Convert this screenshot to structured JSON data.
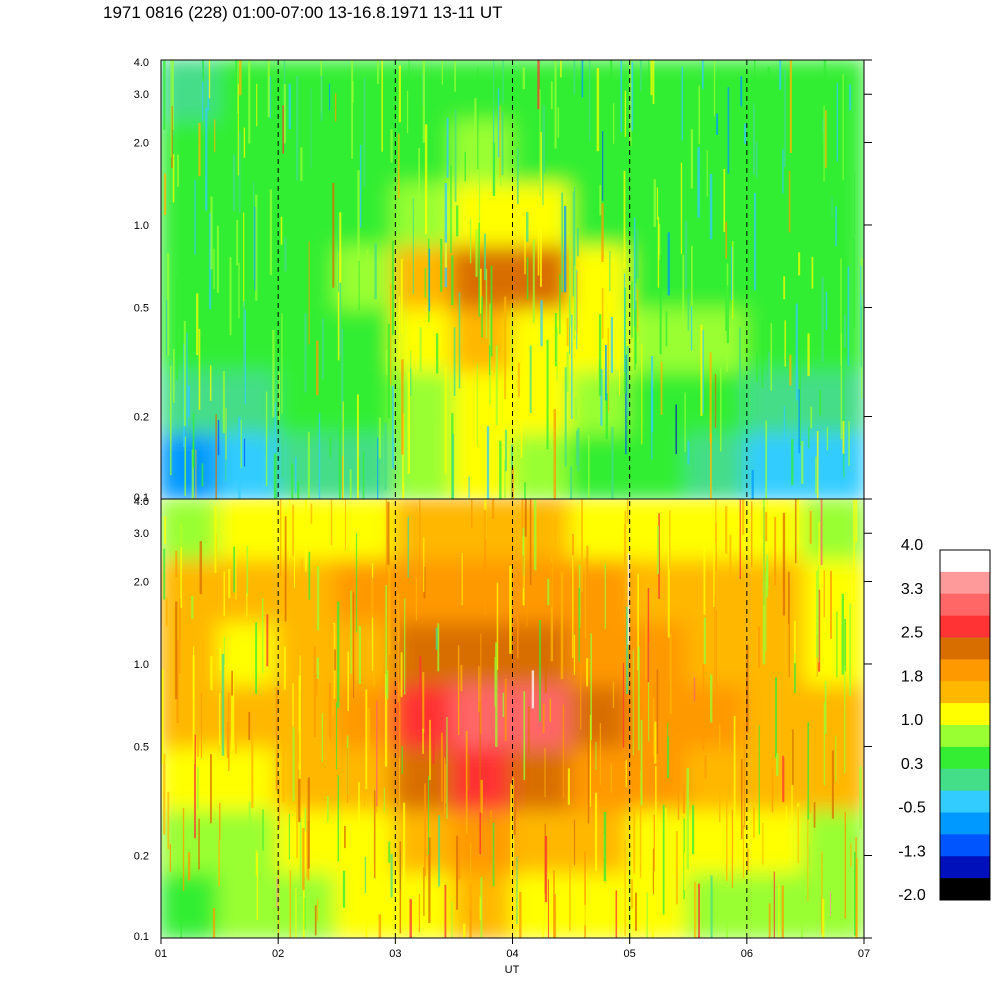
{
  "title": "1971 0816 (228) 01:00-07:00 13-16.8.1971  13-11 UT",
  "chart_data": {
    "type": "heatmap",
    "xlabel": "UT",
    "x_tick_labels": [
      "01",
      "02",
      "03",
      "04",
      "05",
      "06",
      "07"
    ],
    "x_ticks": [
      1,
      2,
      3,
      4,
      5,
      6,
      7
    ],
    "xlim": [
      1,
      7
    ],
    "y_scale": "log",
    "ylim": [
      0.1,
      4.0
    ],
    "y_tick_labels": [
      "4.0",
      "3.0",
      "2.0",
      "1.0",
      "0.5",
      "0.2",
      "0.1"
    ],
    "y_ticks": [
      4.0,
      3.0,
      2.0,
      1.0,
      0.5,
      0.2,
      0.1
    ],
    "dashed_vertical_lines_at": [
      2,
      3,
      4,
      5,
      6
    ],
    "panels": [
      {
        "name": "upper",
        "description_levels": "mostly 0.3 (green) with -0.5 (cyan) near bottom; enhancement 1.0–2.5 around 03:20–04:40 near 0.5–1.0",
        "grid": [
          [
            0.1,
            0.3,
            0.3,
            0.4,
            0.5,
            0.5,
            0.4,
            0.3,
            0.3,
            0.3,
            0.3,
            0.3
          ],
          [
            0.3,
            0.3,
            0.3,
            0.3,
            0.6,
            0.7,
            0.6,
            0.4,
            0.3,
            0.3,
            0.3,
            0.3
          ],
          [
            0.3,
            0.3,
            0.3,
            0.4,
            0.8,
            1.2,
            1.0,
            0.6,
            0.4,
            0.3,
            0.3,
            0.3
          ],
          [
            0.6,
            0.5,
            0.5,
            0.7,
            1.4,
            2.3,
            2.2,
            1.2,
            0.6,
            0.5,
            0.5,
            0.4
          ],
          [
            0.5,
            0.5,
            0.5,
            0.6,
            1.1,
            1.6,
            1.3,
            1.1,
            0.9,
            0.7,
            0.5,
            0.4
          ],
          [
            0.0,
            0.2,
            0.3,
            0.4,
            0.9,
            1.1,
            1.0,
            0.7,
            0.6,
            0.3,
            0.2,
            0.0
          ],
          [
            -0.6,
            -0.3,
            0.0,
            0.2,
            0.8,
            1.0,
            0.8,
            0.5,
            0.3,
            0.0,
            -0.3,
            -0.5
          ]
        ]
      },
      {
        "name": "lower",
        "description_levels": "mostly 1.0–1.8 (yellow/orange); enhancement 2.0–3.0 around 03:20–04:40 near 0.5–1.0",
        "grid": [
          [
            0.9,
            1.0,
            1.2,
            1.3,
            1.4,
            1.6,
            1.5,
            1.3,
            1.2,
            1.1,
            1.0,
            0.9
          ],
          [
            1.5,
            1.6,
            1.6,
            1.8,
            1.9,
            2.0,
            1.9,
            1.8,
            1.7,
            1.6,
            1.4,
            1.3
          ],
          [
            1.4,
            1.3,
            1.4,
            1.7,
            2.3,
            2.4,
            2.2,
            2.0,
            1.8,
            1.6,
            1.4,
            1.2
          ],
          [
            1.7,
            1.7,
            1.7,
            1.9,
            2.6,
            3.0,
            2.9,
            2.3,
            2.1,
            1.9,
            1.6,
            1.5
          ],
          [
            1.3,
            1.3,
            1.4,
            1.7,
            2.3,
            2.5,
            2.2,
            2.1,
            1.9,
            1.6,
            1.4,
            1.4
          ],
          [
            0.8,
            0.9,
            1.0,
            1.3,
            1.7,
            1.8,
            1.7,
            1.5,
            1.3,
            1.1,
            1.0,
            0.9
          ],
          [
            0.6,
            0.7,
            0.8,
            1.0,
            1.3,
            1.4,
            1.3,
            1.2,
            1.0,
            0.9,
            0.8,
            0.7
          ]
        ]
      }
    ],
    "colorbar": {
      "labels": [
        "4.0",
        "3.3",
        "2.5",
        "1.8",
        "1.0",
        "0.3",
        "-0.5",
        "-1.3",
        "-2.0"
      ],
      "colors_top_to_bottom": [
        "#ffffff",
        "#ff9a9a",
        "#ff6666",
        "#ff3333",
        "#d96e00",
        "#ff9900",
        "#ffb700",
        "#ffff00",
        "#99ff33",
        "#33ee33",
        "#44dd88",
        "#33ccff",
        "#0099ff",
        "#0055ff",
        "#0011bb",
        "#000000"
      ],
      "range": [
        -2.0,
        4.0
      ]
    }
  }
}
